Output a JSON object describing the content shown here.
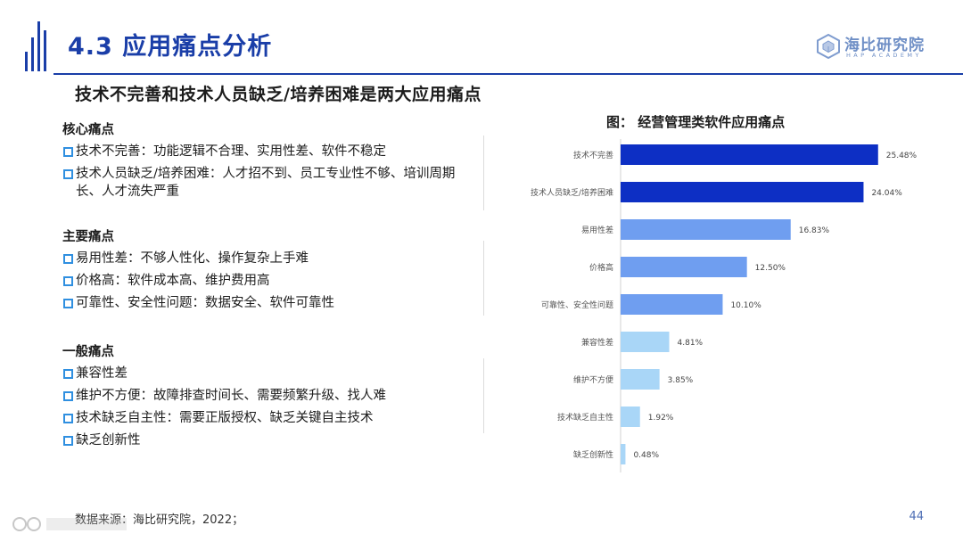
{
  "header": {
    "title": "4.3 应用痛点分析",
    "logo_cn": "海比研究院",
    "logo_en": "HAP ACADEMY",
    "accent": "#1a3ea8"
  },
  "subtitle": "技术不完善和技术人员缺乏/培养困难是两大应用痛点",
  "sections": [
    {
      "title": "核心痛点",
      "items": [
        "技术不完善：功能逻辑不合理、实用性差、软件不稳定",
        "技术人员缺乏/培养困难：人才招不到、员工专业性不够、培训周期长、人才流失严重"
      ]
    },
    {
      "title": "主要痛点",
      "items": [
        "易用性差：不够人性化、操作复杂上手难",
        "价格高：软件成本高、维护费用高",
        "可靠性、安全性问题：数据安全、软件可靠性"
      ]
    },
    {
      "title": "一般痛点",
      "items": [
        "兼容性差",
        "维护不方便：故障排查时间长、需要频繁升级、找人难",
        "技术缺乏自主性：需要正版授权、缺乏关键自主技术",
        "缺乏创新性"
      ]
    }
  ],
  "chart_data": {
    "type": "bar",
    "orientation": "horizontal",
    "title": "图： 经营管理类软件应用痛点",
    "categories": [
      "技术不完善",
      "技术人员缺乏/培养困难",
      "易用性差",
      "价格高",
      "可靠性、安全性问题",
      "兼容性差",
      "维护不方便",
      "技术缺乏自主性",
      "缺乏创新性"
    ],
    "values": [
      25.48,
      24.04,
      16.83,
      12.5,
      10.1,
      4.81,
      3.85,
      1.92,
      0.48
    ],
    "labels": [
      "25.48%",
      "24.04%",
      "16.83%",
      "12.50%",
      "10.10%",
      "4.81%",
      "3.85%",
      "1.92%",
      "0.48%"
    ],
    "colors": [
      "#0d2fc4",
      "#0d2fc4",
      "#6f9ef0",
      "#6f9ef0",
      "#6f9ef0",
      "#a9d6f7",
      "#a9d6f7",
      "#a9d6f7",
      "#a9d6f7"
    ],
    "xlim": [
      0,
      30
    ],
    "grid": false,
    "legend": "none"
  },
  "footer": {
    "source": "数据来源：海比研究院，2022；",
    "page": "44"
  }
}
